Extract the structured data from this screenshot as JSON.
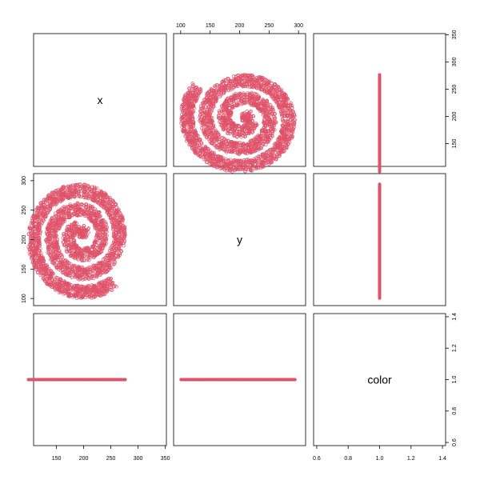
{
  "chart_data": {
    "type": "scatter-matrix",
    "variables": [
      "x",
      "y",
      "color"
    ],
    "point_color": "#DF536B",
    "series_color_value": 1,
    "spiral": {
      "center_x": 195,
      "center_y": 205,
      "start_angle_deg": 290,
      "turns": 3.05,
      "step_per_turn": 32,
      "band_width": 11,
      "points": 3000
    },
    "axes": {
      "x": {
        "range": [
          108,
          352
        ],
        "ticks": [
          150,
          200,
          250,
          300,
          350
        ]
      },
      "y": {
        "range": [
          88,
          312
        ],
        "ticks": [
          100,
          150,
          200,
          250,
          300
        ]
      },
      "color": {
        "range": [
          0.58,
          1.42
        ],
        "ticks": [
          0.6,
          0.8,
          1.0,
          1.2,
          1.4
        ]
      }
    },
    "tick_labels": {
      "x": [
        "150",
        "200",
        "250",
        "300",
        "350"
      ],
      "y": [
        "100",
        "150",
        "200",
        "250",
        "300"
      ],
      "color": [
        "0.6",
        "0.8",
        "1.0",
        "1.2",
        "1.4"
      ]
    }
  }
}
